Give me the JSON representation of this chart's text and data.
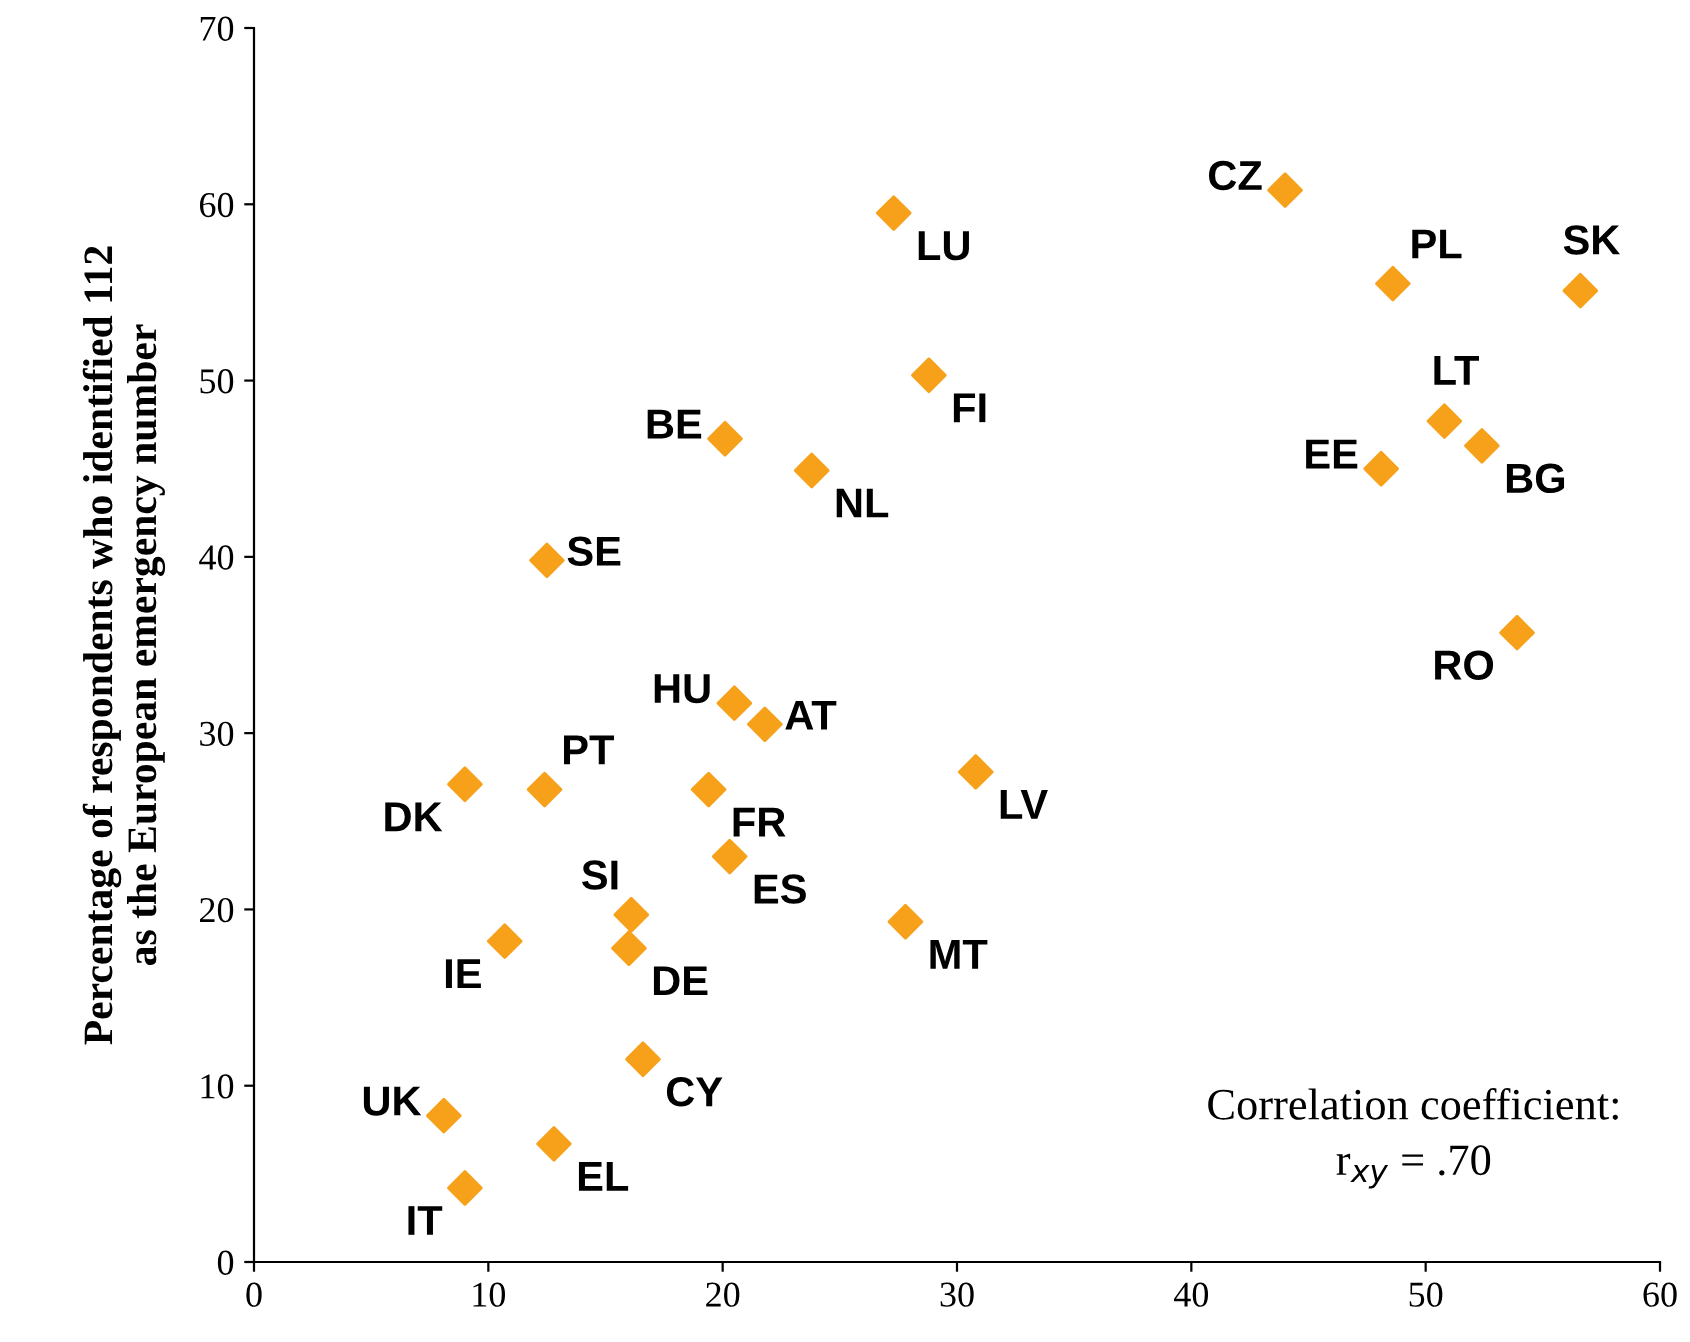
{
  "chart_data": {
    "type": "scatter",
    "ylabel": "Percentage of respondents who identified 112\nas the European emergency number",
    "x": [
      44.0,
      48.6,
      56.6,
      50.8,
      52.4,
      48.1,
      53.9,
      27.3,
      28.8,
      20.1,
      23.8,
      12.5,
      20.5,
      21.8,
      9.0,
      12.4,
      19.4,
      30.8,
      20.3,
      16.1,
      16.0,
      10.7,
      27.8,
      16.6,
      8.1,
      12.8,
      9.0
    ],
    "series": [
      {
        "color": "#f7a11a",
        "values": [
          60.8,
          55.5,
          55.1,
          47.7,
          46.3,
          45.0,
          35.7,
          59.5,
          50.3,
          46.7,
          44.9,
          39.8,
          31.7,
          30.5,
          27.1,
          26.8,
          26.8,
          27.8,
          23.0,
          19.7,
          17.8,
          18.2,
          19.3,
          11.5,
          8.3,
          6.7,
          4.2
        ]
      }
    ],
    "marker": "diamond",
    "xlim": [
      0,
      60
    ],
    "ylim": [
      0,
      70
    ],
    "xticks": [
      0,
      10,
      20,
      30,
      40,
      50,
      60
    ],
    "yticks": [
      0,
      10,
      20,
      30,
      40,
      50,
      60,
      70
    ],
    "grid": false,
    "legend": false,
    "annotations": [
      {
        "text": "CZ",
        "x": 44.0,
        "y": 60.8
      },
      {
        "text": "PL",
        "x": 48.6,
        "y": 55.5
      },
      {
        "text": "SK",
        "x": 56.6,
        "y": 55.1
      },
      {
        "text": "LT",
        "x": 50.8,
        "y": 47.7
      },
      {
        "text": "BG",
        "x": 52.4,
        "y": 46.3
      },
      {
        "text": "EE",
        "x": 48.1,
        "y": 45.0
      },
      {
        "text": "RO",
        "x": 53.9,
        "y": 35.7
      },
      {
        "text": "LU",
        "x": 27.3,
        "y": 59.5
      },
      {
        "text": "FI",
        "x": 28.8,
        "y": 50.3
      },
      {
        "text": "BE",
        "x": 20.1,
        "y": 46.7
      },
      {
        "text": "NL",
        "x": 23.8,
        "y": 44.9
      },
      {
        "text": "SE",
        "x": 12.5,
        "y": 39.8
      },
      {
        "text": "HU",
        "x": 20.5,
        "y": 31.7
      },
      {
        "text": "AT",
        "x": 21.8,
        "y": 30.5
      },
      {
        "text": "DK",
        "x": 9.0,
        "y": 27.1
      },
      {
        "text": "PT",
        "x": 12.4,
        "y": 26.8
      },
      {
        "text": "FR",
        "x": 19.4,
        "y": 26.8
      },
      {
        "text": "LV",
        "x": 30.8,
        "y": 27.8
      },
      {
        "text": "ES",
        "x": 20.3,
        "y": 23.0
      },
      {
        "text": "SI",
        "x": 16.1,
        "y": 19.7
      },
      {
        "text": "DE",
        "x": 16.0,
        "y": 17.8
      },
      {
        "text": "IE",
        "x": 10.7,
        "y": 18.2
      },
      {
        "text": "MT",
        "x": 27.8,
        "y": 19.3
      },
      {
        "text": "CY",
        "x": 16.6,
        "y": 11.5
      },
      {
        "text": "UK",
        "x": 8.1,
        "y": 8.3
      },
      {
        "text": "EL",
        "x": 12.8,
        "y": 6.7
      },
      {
        "text": "IT",
        "x": 9.0,
        "y": 4.2
      },
      "Correlation coefficient:\nr$_{xy}$ = .70"
    ]
  }
}
